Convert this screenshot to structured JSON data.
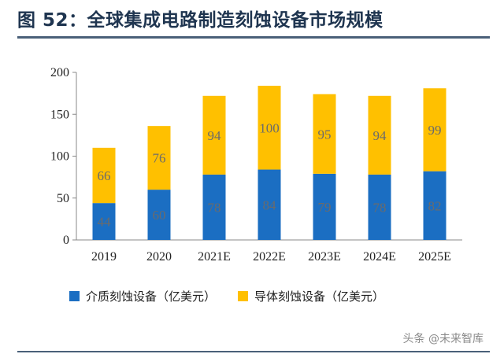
{
  "title": "图 52：全球集成电路制造刻蚀设备市场规模",
  "watermark": "头条 @未来智库",
  "colors": {
    "blue": "#1b6ec2",
    "yellow": "#ffc000",
    "axis": "#888888",
    "title": "#1f3550"
  },
  "chart_data": {
    "type": "bar",
    "stacked": true,
    "categories": [
      "2019",
      "2020",
      "2021E",
      "2022E",
      "2023E",
      "2024E",
      "2025E"
    ],
    "series": [
      {
        "name": "介质刻蚀设备（亿美元）",
        "values": [
          44,
          60,
          78,
          84,
          79,
          78,
          82
        ],
        "color": "#1b6ec2"
      },
      {
        "name": "导体刻蚀设备（亿美元）",
        "values": [
          66,
          76,
          94,
          100,
          95,
          94,
          99
        ],
        "color": "#ffc000"
      }
    ],
    "ylim": [
      0,
      200
    ],
    "yticks": [
      "0",
      "50",
      "100",
      "150",
      "200"
    ],
    "grid": false,
    "legend": "bottom",
    "data_labels": true
  }
}
